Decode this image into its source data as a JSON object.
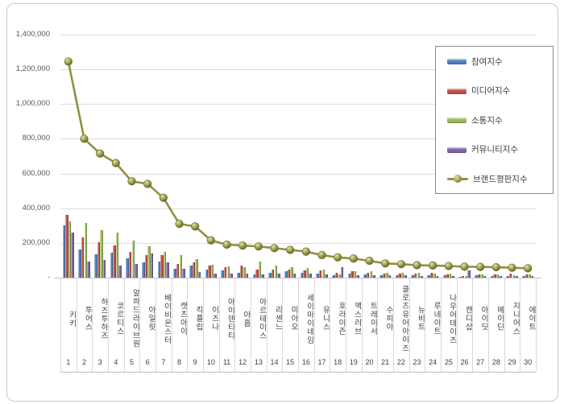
{
  "page": {
    "background": "#ffffff",
    "border_color": "#c9c9c9"
  },
  "chart_data": {
    "type": "bar",
    "title": "",
    "xlabel": "",
    "ylabel": "",
    "grid": true,
    "legend_position": "right-top",
    "ylim": [
      0,
      1400000
    ],
    "ytick_step": 200000,
    "ytick_labels": [
      "1,400,000",
      "1,200,000",
      "1,000,000",
      "800,000",
      "600,000",
      "400,000",
      "200,000",
      "-"
    ],
    "categories": [
      "키키",
      "투어스",
      "하즈투하즈",
      "코르티스",
      "알파드라이브원",
      "아일릿",
      "베이비몬스터",
      "캣츠아이",
      "킥플립",
      "이즈나",
      "아이덴티티",
      "아홉",
      "아르테미스",
      "리센느",
      "미아오",
      "세이마이네임",
      "유니스",
      "호라이즌",
      "액스러브",
      "트레이서",
      "수피아",
      "클로즈유어아이즈",
      "뉴비트",
      "루네이트",
      "나우어데이즈",
      "캔디샵",
      "아이딧",
      "메이딘",
      "지니어스",
      "에이트"
    ],
    "ranks": [
      "1",
      "2",
      "3",
      "4",
      "5",
      "6",
      "7",
      "8",
      "9",
      "10",
      "11",
      "12",
      "13",
      "14",
      "15",
      "16",
      "17",
      "18",
      "19",
      "20",
      "21",
      "22",
      "23",
      "24",
      "25",
      "26",
      "27",
      "28",
      "29",
      "30"
    ],
    "series": [
      {
        "name": "참여지수",
        "semantic": "participation-index",
        "color": "#4F81BD",
        "values": [
          300000,
          160000,
          135000,
          145000,
          112000,
          90000,
          92000,
          50000,
          70000,
          45000,
          42000,
          30000,
          20000,
          30000,
          35000,
          30000,
          25000,
          12000,
          22000,
          18000,
          15000,
          14000,
          13000,
          12000,
          12000,
          5000,
          12000,
          10000,
          10000,
          9000
        ]
      },
      {
        "name": "미디어지수",
        "semantic": "media-index",
        "color": "#C0504D",
        "values": [
          360000,
          230000,
          205000,
          185000,
          148000,
          132000,
          130000,
          80000,
          88000,
          70000,
          60000,
          68000,
          45000,
          48000,
          45000,
          42000,
          40000,
          28000,
          38000,
          30000,
          25000,
          24000,
          22000,
          26000,
          20000,
          10000,
          20000,
          20000,
          24000,
          18000
        ]
      },
      {
        "name": "소통지수",
        "semantic": "communication-index",
        "color": "#9BBB59",
        "values": [
          325000,
          315000,
          272000,
          260000,
          215000,
          180000,
          148000,
          128000,
          105000,
          75000,
          65000,
          62000,
          95000,
          70000,
          58000,
          55000,
          45000,
          18000,
          35000,
          35000,
          30000,
          28000,
          26000,
          21000,
          24000,
          8000,
          20000,
          20000,
          15000,
          18000
        ]
      },
      {
        "name": "커뮤니티지수",
        "semantic": "community-index",
        "color": "#8064A2",
        "values": [
          260000,
          95000,
          103000,
          70000,
          80000,
          138000,
          90000,
          52000,
          32000,
          25000,
          23000,
          25000,
          20000,
          22000,
          22000,
          23000,
          20000,
          59000,
          15000,
          14000,
          12000,
          12000,
          11000,
          11000,
          11000,
          40000,
          10000,
          10000,
          8000,
          9000
        ]
      }
    ],
    "line_series": {
      "name": "브랜드평판지수",
      "semantic": "brand-reputation-index",
      "color": "#8A8C3C",
      "values": [
        1245000,
        800000,
        715000,
        660000,
        555000,
        540000,
        460000,
        310000,
        295000,
        215000,
        190000,
        185000,
        180000,
        170000,
        160000,
        150000,
        130000,
        117000,
        110000,
        97000,
        82000,
        78000,
        72000,
        70000,
        67000,
        63000,
        62000,
        60000,
        57000,
        54000
      ]
    }
  },
  "legend": {
    "entries": [
      {
        "label": "참여지수",
        "color": "#4F81BD",
        "type": "bar"
      },
      {
        "label": "미디어지수",
        "color": "#C0504D",
        "type": "bar"
      },
      {
        "label": "소통지수",
        "color": "#9BBB59",
        "type": "bar"
      },
      {
        "label": "커뮤니티지수",
        "color": "#8064A2",
        "type": "bar"
      },
      {
        "label": "브랜드평판지수",
        "color": "#8A8C3C",
        "type": "line"
      }
    ]
  }
}
